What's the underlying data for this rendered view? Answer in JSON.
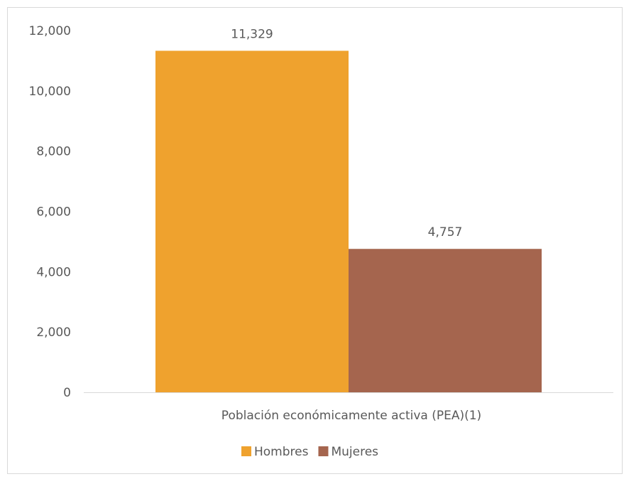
{
  "chart_data": {
    "type": "bar",
    "title": "",
    "xlabel": "",
    "ylabel": "",
    "categories": [
      "Población económicamente activa (PEA)(1)"
    ],
    "series": [
      {
        "name": "Hombres",
        "values": [
          11329
        ],
        "value_labels": [
          "11,329"
        ],
        "color": "#EFA22E"
      },
      {
        "name": "Mujeres",
        "values": [
          4757
        ],
        "value_labels": [
          "4,757"
        ],
        "color": "#A5654E"
      }
    ],
    "ylim": [
      0,
      12000
    ],
    "yticks": [
      0,
      2000,
      4000,
      6000,
      8000,
      10000,
      12000
    ],
    "ytick_labels": [
      "0",
      "2,000",
      "4,000",
      "6,000",
      "8,000",
      "10,000",
      "12,000"
    ],
    "gridlines": false,
    "legend_position": "bottom",
    "frame_border_color": "#D9D9D9",
    "axis_color": "#D9D9D9",
    "text_color": "#595959"
  }
}
